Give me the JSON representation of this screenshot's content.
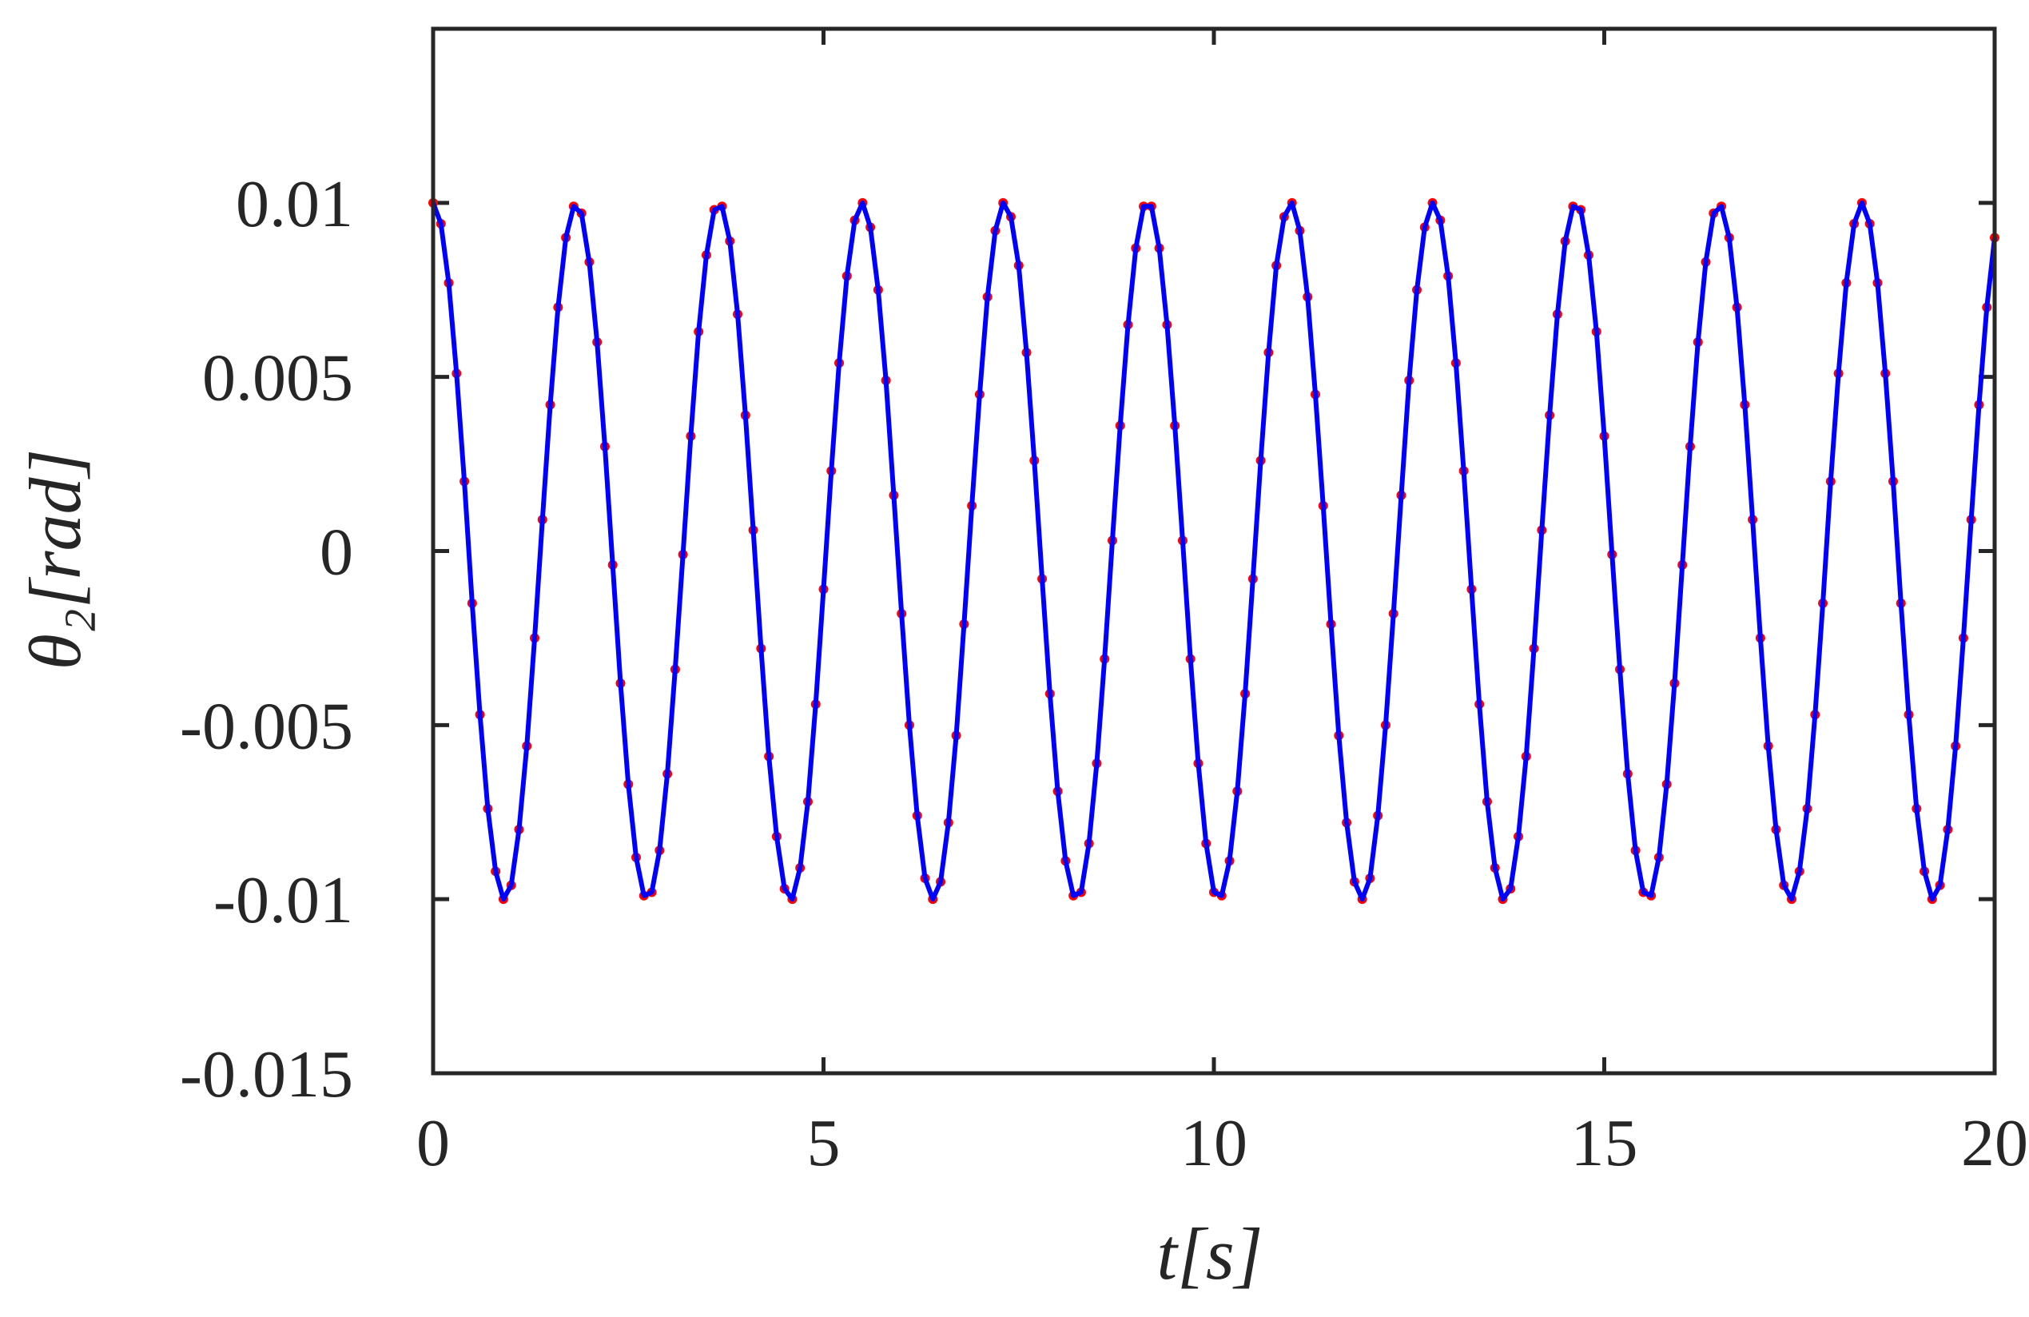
{
  "chart_data": {
    "type": "line",
    "x_label": "t[s]",
    "y_label": "θ₂[rad]",
    "xlim": [
      0,
      20
    ],
    "ylim": [
      -0.015,
      0.015
    ],
    "xticks": [
      0,
      5,
      10,
      15,
      20
    ],
    "yticks": [
      -0.015,
      -0.01,
      -0.005,
      0,
      0.005,
      0.01
    ],
    "x": [
      0,
      0.1,
      0.2,
      0.3,
      0.4,
      0.5,
      0.6,
      0.7,
      0.8,
      0.9,
      1,
      1.1,
      1.2,
      1.3,
      1.4,
      1.5,
      1.6,
      1.7,
      1.8,
      1.9,
      2,
      2.1,
      2.2,
      2.3,
      2.4,
      2.5,
      2.6,
      2.7,
      2.8,
      2.9,
      3,
      3.1,
      3.2,
      3.3,
      3.4,
      3.5,
      3.6,
      3.7,
      3.8,
      3.9,
      4,
      4.1,
      4.2,
      4.3,
      4.4,
      4.5,
      4.6,
      4.7,
      4.8,
      4.9,
      5,
      5.1,
      5.2,
      5.3,
      5.4,
      5.5,
      5.6,
      5.7,
      5.8,
      5.9,
      6,
      6.1,
      6.2,
      6.3,
      6.4,
      6.5,
      6.6,
      6.7,
      6.8,
      6.9,
      7,
      7.1,
      7.2,
      7.3,
      7.4,
      7.5,
      7.6,
      7.7,
      7.8,
      7.9,
      8,
      8.1,
      8.2,
      8.3,
      8.4,
      8.5,
      8.6,
      8.7,
      8.8,
      8.9,
      9,
      9.1,
      9.2,
      9.3,
      9.4,
      9.5,
      9.6,
      9.7,
      9.8,
      9.9,
      10,
      10.1,
      10.2,
      10.3,
      10.4,
      10.5,
      10.6,
      10.7,
      10.8,
      10.9,
      11,
      11.1,
      11.2,
      11.3,
      11.4,
      11.5,
      11.6,
      11.7,
      11.8,
      11.9,
      12,
      12.1,
      12.2,
      12.3,
      12.4,
      12.5,
      12.6,
      12.7,
      12.8,
      12.9,
      13,
      13.1,
      13.2,
      13.3,
      13.4,
      13.5,
      13.6,
      13.7,
      13.8,
      13.9,
      14,
      14.1,
      14.2,
      14.3,
      14.4,
      14.5,
      14.6,
      14.7,
      14.8,
      14.9,
      15,
      15.1,
      15.2,
      15.3,
      15.4,
      15.5,
      15.6,
      15.7,
      15.8,
      15.9,
      16,
      16.1,
      16.2,
      16.3,
      16.4,
      16.5,
      16.6,
      16.7,
      16.8,
      16.9,
      17,
      17.1,
      17.2,
      17.3,
      17.4,
      17.5,
      17.6,
      17.7,
      17.8,
      17.9,
      18,
      18.1,
      18.2,
      18.3,
      18.4,
      18.5,
      18.6,
      18.7,
      18.8,
      18.9,
      19,
      19.1,
      19.2,
      19.3,
      19.4,
      19.5,
      19.6,
      19.7,
      19.8,
      19.9,
      20
    ],
    "series": [
      {
        "color": "#0000ff",
        "values": [
          0.01,
          0.0094,
          0.0077,
          0.0051,
          0.002,
          -0.0015,
          -0.0047,
          -0.0074,
          -0.0092,
          -0.01,
          -0.0096,
          -0.008,
          -0.0056,
          -0.0025,
          0.0009,
          0.0042,
          0.007,
          0.009,
          0.0099,
          0.0097,
          0.0083,
          0.006,
          0.003,
          -0.0004,
          -0.0038,
          -0.0067,
          -0.0088,
          -0.0099,
          -0.0098,
          -0.0086,
          -0.0064,
          -0.0034,
          -0.0001,
          0.0033,
          0.0063,
          0.0085,
          0.0098,
          0.0099,
          0.0089,
          0.0068,
          0.0039,
          0.0006,
          -0.0028,
          -0.0059,
          -0.0082,
          -0.0097,
          -0.01,
          -0.0091,
          -0.0072,
          -0.0044,
          -0.0011,
          0.0023,
          0.0054,
          0.0079,
          0.0095,
          0.01,
          0.0093,
          0.0075,
          0.0049,
          0.0016,
          -0.0018,
          -0.005,
          -0.0076,
          -0.0094,
          -0.01,
          -0.0095,
          -0.0078,
          -0.0053,
          -0.0021,
          0.0013,
          0.0045,
          0.0073,
          0.0092,
          0.01,
          0.0096,
          0.0082,
          0.0057,
          0.0026,
          -0.0008,
          -0.0041,
          -0.0069,
          -0.0089,
          -0.0099,
          -0.0098,
          -0.0084,
          -0.0061,
          -0.0031,
          0.0003,
          0.0036,
          0.0065,
          0.0087,
          0.0099,
          0.0099,
          0.0087,
          0.0065,
          0.0036,
          0.0003,
          -0.0031,
          -0.0061,
          -0.0084,
          -0.0098,
          -0.0099,
          -0.0089,
          -0.0069,
          -0.0041,
          -0.0008,
          0.0026,
          0.0057,
          0.0082,
          0.0096,
          0.01,
          0.0092,
          0.0073,
          0.0045,
          0.0013,
          -0.0021,
          -0.0053,
          -0.0078,
          -0.0095,
          -0.01,
          -0.0094,
          -0.0076,
          -0.005,
          -0.0018,
          0.0016,
          0.0049,
          0.0075,
          0.0093,
          0.01,
          0.0095,
          0.0079,
          0.0054,
          0.0023,
          -0.0011,
          -0.0044,
          -0.0072,
          -0.0091,
          -0.01,
          -0.0097,
          -0.0082,
          -0.0059,
          -0.0028,
          0.0006,
          0.0039,
          0.0068,
          0.0089,
          0.0099,
          0.0098,
          0.0085,
          0.0063,
          0.0033,
          -0.0001,
          -0.0034,
          -0.0064,
          -0.0086,
          -0.0098,
          -0.0099,
          -0.0088,
          -0.0067,
          -0.0038,
          -0.0004,
          0.003,
          0.006,
          0.0083,
          0.0097,
          0.0099,
          0.009,
          0.007,
          0.0042,
          0.0009,
          -0.0025,
          -0.0056,
          -0.008,
          -0.0096,
          -0.01,
          -0.0092,
          -0.0074,
          -0.0047,
          -0.0015,
          0.002,
          0.0051,
          0.0077,
          0.0094,
          0.01,
          0.0094,
          0.0077,
          0.0051,
          0.002,
          -0.0015,
          -0.0047,
          -0.0074,
          -0.0092,
          -0.01,
          -0.0096,
          -0.008,
          -0.0056,
          -0.0025,
          0.0009,
          0.0042,
          0.007,
          0.009
        ]
      },
      {
        "color": "#ff0000",
        "marker": "dot",
        "values": [
          0.01,
          0.0094,
          0.0077,
          0.0051,
          0.002,
          -0.0015,
          -0.0047,
          -0.0074,
          -0.0092,
          -0.01,
          -0.0096,
          -0.008,
          -0.0056,
          -0.0025,
          0.0009,
          0.0042,
          0.007,
          0.009,
          0.0099,
          0.0097,
          0.0083,
          0.006,
          0.003,
          -0.0004,
          -0.0038,
          -0.0067,
          -0.0088,
          -0.0099,
          -0.0098,
          -0.0086,
          -0.0064,
          -0.0034,
          -0.0001,
          0.0033,
          0.0063,
          0.0085,
          0.0098,
          0.0099,
          0.0089,
          0.0068,
          0.0039,
          0.0006,
          -0.0028,
          -0.0059,
          -0.0082,
          -0.0097,
          -0.01,
          -0.0091,
          -0.0072,
          -0.0044,
          -0.0011,
          0.0023,
          0.0054,
          0.0079,
          0.0095,
          0.01,
          0.0093,
          0.0075,
          0.0049,
          0.0016,
          -0.0018,
          -0.005,
          -0.0076,
          -0.0094,
          -0.01,
          -0.0095,
          -0.0078,
          -0.0053,
          -0.0021,
          0.0013,
          0.0045,
          0.0073,
          0.0092,
          0.01,
          0.0096,
          0.0082,
          0.0057,
          0.0026,
          -0.0008,
          -0.0041,
          -0.0069,
          -0.0089,
          -0.0099,
          -0.0098,
          -0.0084,
          -0.0061,
          -0.0031,
          0.0003,
          0.0036,
          0.0065,
          0.0087,
          0.0099,
          0.0099,
          0.0087,
          0.0065,
          0.0036,
          0.0003,
          -0.0031,
          -0.0061,
          -0.0084,
          -0.0098,
          -0.0099,
          -0.0089,
          -0.0069,
          -0.0041,
          -0.0008,
          0.0026,
          0.0057,
          0.0082,
          0.0096,
          0.01,
          0.0092,
          0.0073,
          0.0045,
          0.0013,
          -0.0021,
          -0.0053,
          -0.0078,
          -0.0095,
          -0.01,
          -0.0094,
          -0.0076,
          -0.005,
          -0.0018,
          0.0016,
          0.0049,
          0.0075,
          0.0093,
          0.01,
          0.0095,
          0.0079,
          0.0054,
          0.0023,
          -0.0011,
          -0.0044,
          -0.0072,
          -0.0091,
          -0.01,
          -0.0097,
          -0.0082,
          -0.0059,
          -0.0028,
          0.0006,
          0.0039,
          0.0068,
          0.0089,
          0.0099,
          0.0098,
          0.0085,
          0.0063,
          0.0033,
          -0.0001,
          -0.0034,
          -0.0064,
          -0.0086,
          -0.0098,
          -0.0099,
          -0.0088,
          -0.0067,
          -0.0038,
          -0.0004,
          0.003,
          0.006,
          0.0083,
          0.0097,
          0.0099,
          0.009,
          0.007,
          0.0042,
          0.0009,
          -0.0025,
          -0.0056,
          -0.008,
          -0.0096,
          -0.01,
          -0.0092,
          -0.0074,
          -0.0047,
          -0.0015,
          0.002,
          0.0051,
          0.0077,
          0.0094,
          0.01,
          0.0094,
          0.0077,
          0.0051,
          0.002,
          -0.0015,
          -0.0047,
          -0.0074,
          -0.0092,
          -0.01,
          -0.0096,
          -0.008,
          -0.0056,
          -0.0025,
          0.0009,
          0.0042,
          0.007,
          0.009
        ]
      }
    ]
  }
}
